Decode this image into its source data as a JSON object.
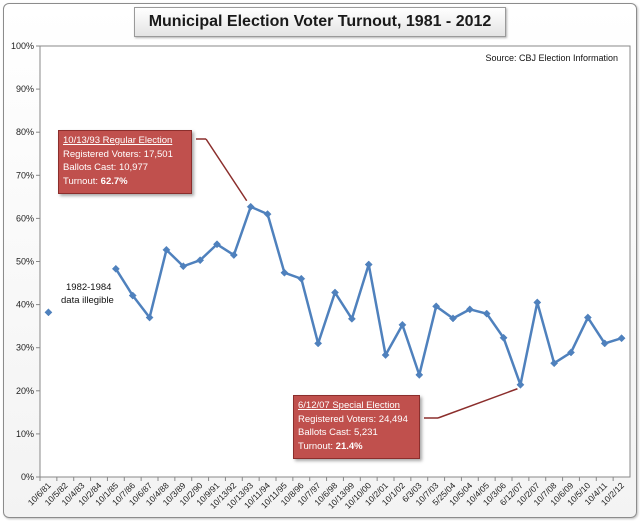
{
  "chart_data": {
    "type": "line",
    "title": "Municipal Election Voter Turnout, 1981 - 2012",
    "source": "Source: CBJ Election Information",
    "ylim": [
      0,
      100
    ],
    "yticks": [
      "0%",
      "10%",
      "20%",
      "30%",
      "40%",
      "50%",
      "60%",
      "70%",
      "80%",
      "90%",
      "100%"
    ],
    "grid": true,
    "color": "#4f81bd",
    "categories": [
      "10/6/81",
      "10/5/82",
      "10/4/83",
      "10/2/84",
      "10/1/85",
      "10/7/86",
      "10/6/87",
      "10/4/88",
      "10/3/89",
      "10/2/90",
      "10/9/91",
      "10/13/92",
      "10/13/93",
      "10/11/94",
      "10/11/95",
      "10/8/96",
      "10/7/97",
      "10/6/98",
      "10/13/99",
      "10/10/00",
      "10/2/01",
      "10/1/02",
      "6/3/03",
      "10/7/03",
      "5/25/04",
      "10/5/04",
      "10/4/05",
      "10/3/06",
      "6/12/07",
      "10/2/07",
      "10/7/08",
      "10/6/09",
      "10/5/10",
      "10/4/11",
      "10/2/12"
    ],
    "values": [
      38.2,
      null,
      null,
      null,
      48.3,
      42.1,
      37.0,
      52.7,
      48.9,
      50.3,
      54.0,
      51.5,
      62.7,
      61.0,
      47.4,
      46.0,
      31.0,
      42.8,
      36.7,
      49.3,
      28.3,
      35.3,
      23.7,
      39.6,
      36.8,
      38.9,
      37.9,
      32.3,
      21.4,
      40.5,
      26.4,
      28.9,
      37.0,
      31.0,
      32.2
    ],
    "annotation": "1982-1984\ndata illegible"
  },
  "annotations": {
    "note_line1": "1982-1984",
    "note_line2": "data illegible",
    "callout_1993": {
      "header": "10/13/93  Regular Election",
      "registered": "Registered Voters: 17,501",
      "ballots": "Ballots Cast: 10,977",
      "turnout_label": "Turnout: ",
      "turnout_value": "62.7%"
    },
    "callout_2007": {
      "header": "6/12/07  Special Election",
      "registered": "Registered Voters: 24,494",
      "ballots": "Ballots Cast: 5,231",
      "turnout_label": "Turnout: ",
      "turnout_value": "21.4%"
    }
  }
}
